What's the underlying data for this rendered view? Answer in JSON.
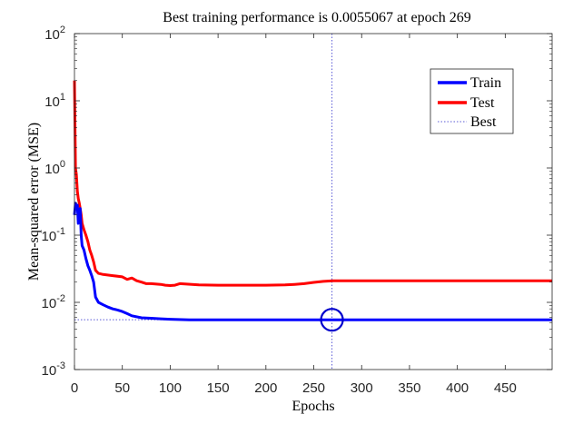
{
  "chart_data": {
    "type": "line",
    "title": "Best training performance is 0.0055067 at epoch 269",
    "xlabel": "Epochs",
    "ylabel": "Mean-squared error  (MSE)",
    "xlim": [
      0,
      499
    ],
    "ylim": [
      0.001,
      100
    ],
    "yscale": "log",
    "grid": false,
    "box": true,
    "legend_position": "top-right",
    "x_ticks": [
      0,
      50,
      100,
      150,
      200,
      250,
      300,
      350,
      400,
      450
    ],
    "y_ticks": [
      {
        "value": 0.001,
        "base": "10",
        "exp": "-3"
      },
      {
        "value": 0.01,
        "base": "10",
        "exp": "-2"
      },
      {
        "value": 0.1,
        "base": "10",
        "exp": "-1"
      },
      {
        "value": 1,
        "base": "10",
        "exp": "0"
      },
      {
        "value": 10,
        "base": "10",
        "exp": "1"
      },
      {
        "value": 100,
        "base": "10",
        "exp": "2"
      }
    ],
    "series": [
      {
        "name": "Train",
        "color": "#0000ff",
        "style": "solid",
        "x": [
          0,
          1,
          2,
          3,
          4,
          5,
          6,
          7,
          8,
          10,
          12,
          14,
          16,
          18,
          20,
          22,
          25,
          30,
          35,
          40,
          45,
          50,
          55,
          60,
          70,
          80,
          90,
          100,
          120,
          150,
          200,
          250,
          269,
          300,
          350,
          400,
          450,
          499
        ],
        "y": [
          0.2,
          0.3,
          0.25,
          0.28,
          0.15,
          0.2,
          0.25,
          0.1,
          0.07,
          0.06,
          0.045,
          0.035,
          0.03,
          0.025,
          0.02,
          0.012,
          0.01,
          0.0092,
          0.0085,
          0.008,
          0.0077,
          0.0073,
          0.0068,
          0.0063,
          0.0059,
          0.0058,
          0.0057,
          0.0056,
          0.0055,
          0.0055,
          0.0055,
          0.0055,
          0.0055067,
          0.0055,
          0.0055,
          0.0055,
          0.0055,
          0.0055
        ]
      },
      {
        "name": "Test",
        "color": "#ff0000",
        "style": "solid",
        "x": [
          0,
          1,
          2,
          3,
          4,
          5,
          6,
          7,
          8,
          10,
          12,
          14,
          16,
          18,
          20,
          22,
          25,
          30,
          40,
          50,
          55,
          60,
          65,
          70,
          75,
          80,
          90,
          95,
          100,
          105,
          110,
          130,
          150,
          200,
          220,
          230,
          240,
          250,
          260,
          270,
          300,
          350,
          400,
          450,
          499
        ],
        "y": [
          20,
          1.0,
          0.8,
          0.45,
          0.35,
          0.3,
          0.25,
          0.2,
          0.15,
          0.12,
          0.1,
          0.08,
          0.06,
          0.05,
          0.04,
          0.03,
          0.027,
          0.026,
          0.025,
          0.024,
          0.022,
          0.023,
          0.021,
          0.02,
          0.019,
          0.019,
          0.0185,
          0.018,
          0.0178,
          0.018,
          0.019,
          0.0182,
          0.018,
          0.018,
          0.0182,
          0.0185,
          0.019,
          0.0198,
          0.0205,
          0.021,
          0.021,
          0.021,
          0.021,
          0.021,
          0.021
        ]
      },
      {
        "name": "Best",
        "color": "#5b5bd6",
        "style": "dotted",
        "x_value": 269,
        "y_value": 0.0055067
      }
    ],
    "best_marker": {
      "x": 269,
      "y": 0.0055067,
      "color": "#0000cc"
    }
  }
}
